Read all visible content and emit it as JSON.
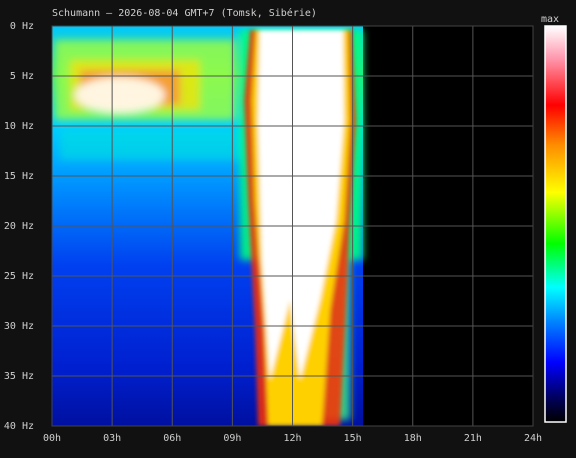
{
  "chart_data": {
    "type": "spectrogram",
    "title": "Schumann — 2026-08-04 GMT+7  (Tomsk, Sibérie)",
    "colorbar_label": "max",
    "xlim": [
      0,
      24
    ],
    "ylim": [
      0,
      40
    ],
    "y_inverted": true,
    "grid": true,
    "xticks": [
      {
        "value": 0,
        "label": "00h"
      },
      {
        "value": 3,
        "label": "03h"
      },
      {
        "value": 6,
        "label": "06h"
      },
      {
        "value": 9,
        "label": "09h"
      },
      {
        "value": 12,
        "label": "12h"
      },
      {
        "value": 15,
        "label": "15h"
      },
      {
        "value": 18,
        "label": "18h"
      },
      {
        "value": 21,
        "label": "21h"
      },
      {
        "value": 24,
        "label": "24h"
      }
    ],
    "yticks": [
      {
        "value": 0,
        "label": "0 Hz"
      },
      {
        "value": 5,
        "label": "5 Hz"
      },
      {
        "value": 10,
        "label": "10 Hz"
      },
      {
        "value": 15,
        "label": "15 Hz"
      },
      {
        "value": 20,
        "label": "20 Hz"
      },
      {
        "value": 25,
        "label": "25 Hz"
      },
      {
        "value": 30,
        "label": "30 Hz"
      },
      {
        "value": 35,
        "label": "35 Hz"
      },
      {
        "value": 40,
        "label": "40 Hz"
      }
    ]
  }
}
